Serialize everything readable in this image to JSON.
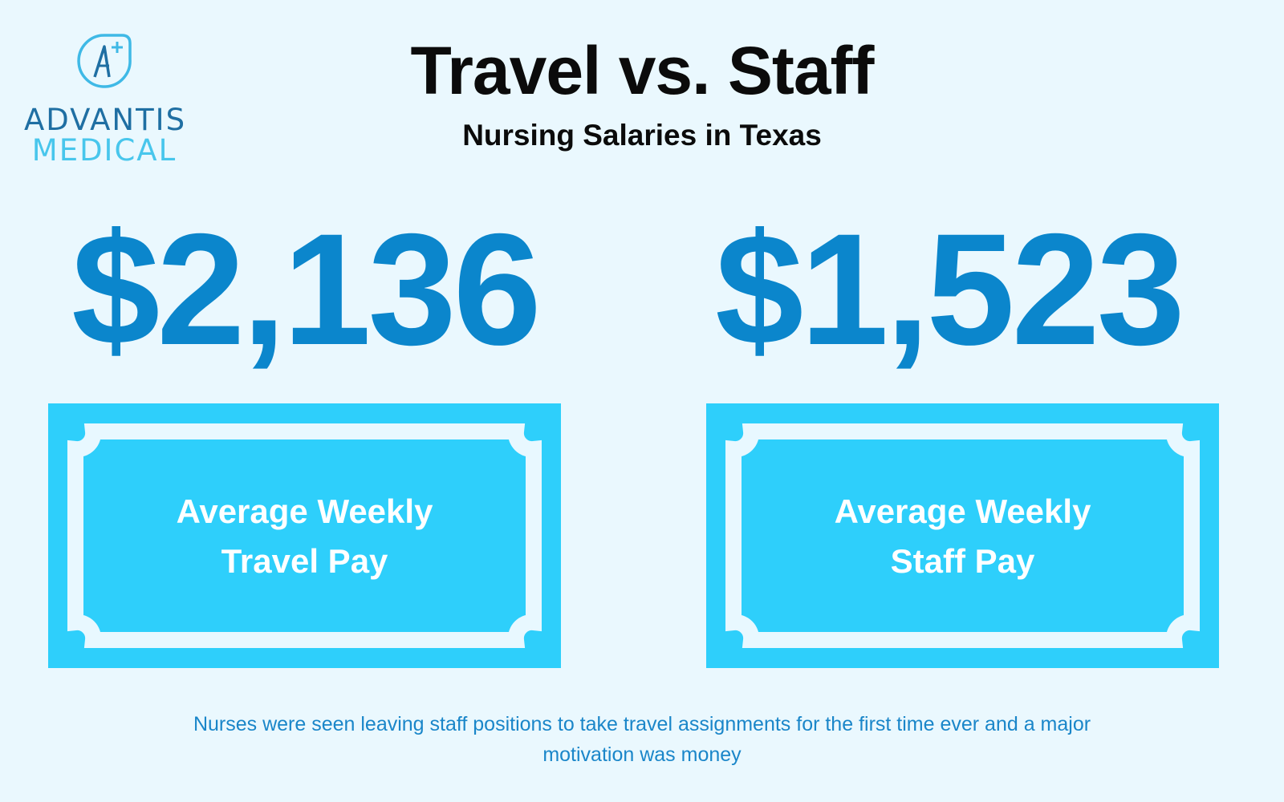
{
  "logo": {
    "line1": "ADVANTIS",
    "line2": "MEDICAL"
  },
  "header": {
    "title": "Travel vs. Staff",
    "subtitle": "Nursing Salaries in Texas"
  },
  "travel": {
    "amount": "$2,136",
    "label_line1": "Average Weekly",
    "label_line2": "Travel Pay"
  },
  "staff": {
    "amount": "$1,523",
    "label_line1": "Average Weekly",
    "label_line2": "Staff Pay"
  },
  "footnote": {
    "line1": "Nurses were seen leaving staff positions to take travel assignments for the first time ever and a major",
    "line2": "motivation was money"
  },
  "colors": {
    "background": "#eaf8fe",
    "amount": "#0b86cc",
    "card": "#2ecffb",
    "footnote": "#1a86c9",
    "logo_dark": "#1f6fa3",
    "logo_light": "#48c6ec"
  }
}
